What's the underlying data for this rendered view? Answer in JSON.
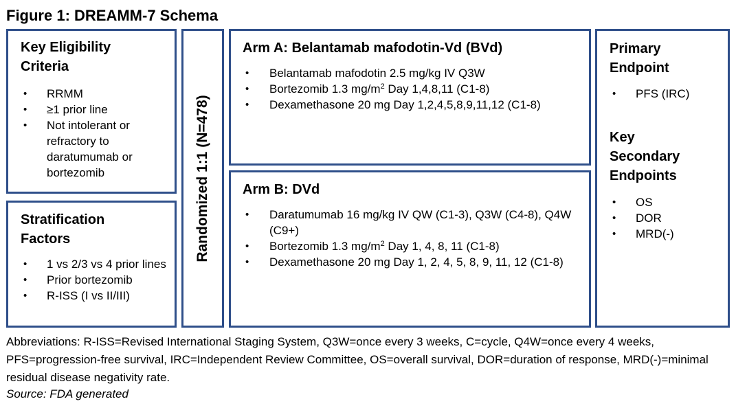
{
  "title": "Figure 1: DREAMM-7 Schema",
  "eligibility": {
    "heading_line1": "Key Eligibility",
    "heading_line2": "Criteria",
    "items": [
      "RRMM",
      "≥1 prior line",
      "Not intolerant or refractory to daratumumab or bortezomib"
    ]
  },
  "stratification": {
    "heading_line1": "Stratification",
    "heading_line2": "Factors",
    "items": [
      "1 vs 2/3 vs 4 prior lines",
      "Prior bortezomib",
      "R-ISS (I vs II/III)"
    ]
  },
  "randomization": {
    "label": "Randomized 1:1 (N=478)"
  },
  "arm_a": {
    "heading": "Arm A: Belantamab mafodotin-Vd (BVd)",
    "item1": "Belantamab mafodotin 2.5 mg/kg IV Q3W",
    "item2_pre": "Bortezomib 1.3 mg/m",
    "item2_sup": "2",
    "item2_post": " Day 1,4,8,11 (C1-8)",
    "item3": "Dexamethasone 20 mg Day 1,2,4,5,8,9,11,12 (C1-8)"
  },
  "arm_b": {
    "heading": "Arm B: DVd",
    "item1": "Daratumumab 16 mg/kg IV QW (C1-3), Q3W (C4-8), Q4W (C9+)",
    "item2_pre": "Bortezomib 1.3 mg/m",
    "item2_sup": "2",
    "item2_post": " Day 1, 4, 8, 11 (C1-8)",
    "item3": "Dexamethasone 20 mg Day 1, 2, 4, 5, 8, 9, 11, 12 (C1-8)"
  },
  "endpoints": {
    "primary_line1": "Primary",
    "primary_line2": "Endpoint",
    "primary_items": [
      "PFS (IRC)"
    ],
    "secondary_line1": "Key",
    "secondary_line2": "Secondary",
    "secondary_line3": "Endpoints",
    "secondary_items": [
      "OS",
      "DOR",
      "MRD(-)"
    ]
  },
  "footnote": "Abbreviations: R-ISS=Revised International Staging System, Q3W=once every 3 weeks, C=cycle, Q4W=once every 4 weeks, PFS=progression-free survival, IRC=Independent Review Committee, OS=overall survival, DOR=duration of response, MRD(-)=minimal residual disease negativity rate.",
  "source": "Source: FDA generated",
  "colors": {
    "box_border": "#2f4f8a"
  }
}
